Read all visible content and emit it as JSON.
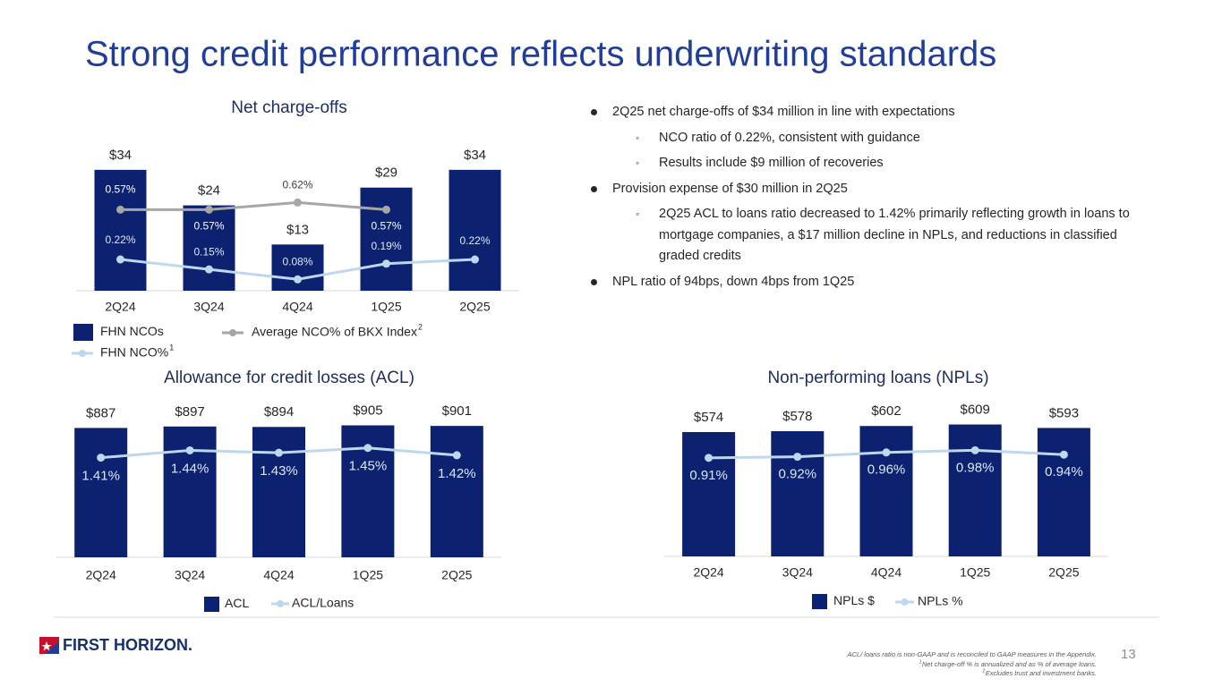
{
  "slide": {
    "title": "Strong credit performance reflects underwriting standards",
    "bullets": [
      {
        "level": 1,
        "text": "2Q25 net charge-offs of $34 million in line with expectations"
      },
      {
        "level": 2,
        "text": "NCO ratio of 0.22%, consistent with guidance"
      },
      {
        "level": 2,
        "text": "Results include $9 million of recoveries"
      },
      {
        "level": 1,
        "text": "Provision expense of $30 million in 2Q25"
      },
      {
        "level": 2,
        "text": "2Q25 ACL to loans ratio decreased to 1.42% primarily reflecting growth in loans to mortgage companies, a $17 million decline in NPLs, and reductions in classified graded credits"
      },
      {
        "level": 1,
        "text": "NPL ratio of 94bps, down 4bps from 1Q25"
      }
    ],
    "logo": "FIRST HORIZON.",
    "footnotes": [
      {
        "text": "ACL/ loans ratio is non-GAAP and is reconciled to GAAP measures in the Appendix."
      },
      {
        "marker": "1",
        "text": "Net charge-off % is annualized and as % of average loans."
      },
      {
        "marker": "2",
        "text": "Excludes trust and investment banks."
      }
    ],
    "page_number": "13"
  },
  "chart_data": [
    {
      "type": "bar",
      "title": "Net charge-offs",
      "categories": [
        "2Q24",
        "3Q24",
        "4Q24",
        "1Q25",
        "2Q25"
      ],
      "ylim": [
        0,
        40
      ],
      "y2lim": [
        0,
        1
      ],
      "series": [
        {
          "name": "FHN NCOs",
          "color": "#0c2170",
          "values": [
            34,
            24,
            13,
            29,
            34
          ],
          "value_labels": [
            "$34",
            "$24",
            "$13",
            "$29",
            "$34"
          ]
        },
        {
          "name": "FHN NCO%",
          "name_note": "1",
          "type": "line",
          "axis": "y2",
          "color": "#bdd7ee",
          "values": [
            0.22,
            0.15,
            0.08,
            0.19,
            0.22
          ],
          "value_labels": [
            "0.22%",
            "0.15%",
            "0.08%",
            "0.19%",
            "0.22%"
          ]
        },
        {
          "name": "Average NCO% of BKX Index",
          "name_note": "2",
          "type": "line",
          "axis": "y2",
          "color": "#a6a6a6",
          "values": [
            0.57,
            0.57,
            0.62,
            0.57,
            null
          ],
          "value_labels": [
            "0.57%",
            "0.57%",
            "0.62%",
            "0.57%",
            null
          ]
        }
      ]
    },
    {
      "type": "bar",
      "title": "Allowance for credit losses (ACL)",
      "categories": [
        "2Q24",
        "3Q24",
        "4Q24",
        "1Q25",
        "2Q25"
      ],
      "ylim": [
        0,
        1000
      ],
      "y2lim": [
        1.0,
        1.6
      ],
      "series": [
        {
          "name": "ACL",
          "color": "#0c2170",
          "values": [
            887,
            897,
            894,
            905,
            901
          ],
          "value_labels": [
            "$887",
            "$897",
            "$894",
            "$905",
            "$901"
          ]
        },
        {
          "name": "ACL/Loans",
          "type": "line",
          "axis": "y2",
          "color": "#bdd7ee",
          "values": [
            1.41,
            1.44,
            1.43,
            1.45,
            1.42
          ],
          "value_labels": [
            "1.41%",
            "1.44%",
            "1.43%",
            "1.45%",
            "1.42%"
          ]
        }
      ]
    },
    {
      "type": "bar",
      "title": "Non-performing loans (NPLs)",
      "categories": [
        "2Q24",
        "3Q24",
        "4Q24",
        "1Q25",
        "2Q25"
      ],
      "ylim": [
        0,
        700
      ],
      "y2lim": [
        0,
        1.4
      ],
      "series": [
        {
          "name": "NPLs $",
          "color": "#0c2170",
          "values": [
            574,
            578,
            602,
            609,
            593
          ],
          "value_labels": [
            "$574",
            "$578",
            "$602",
            "$609",
            "$593"
          ]
        },
        {
          "name": "NPLs %",
          "type": "line",
          "axis": "y2",
          "color": "#bdd7ee",
          "values": [
            0.91,
            0.92,
            0.96,
            0.98,
            0.94
          ],
          "value_labels": [
            "0.91%",
            "0.92%",
            "0.96%",
            "0.98%",
            "0.94%"
          ]
        }
      ]
    }
  ]
}
